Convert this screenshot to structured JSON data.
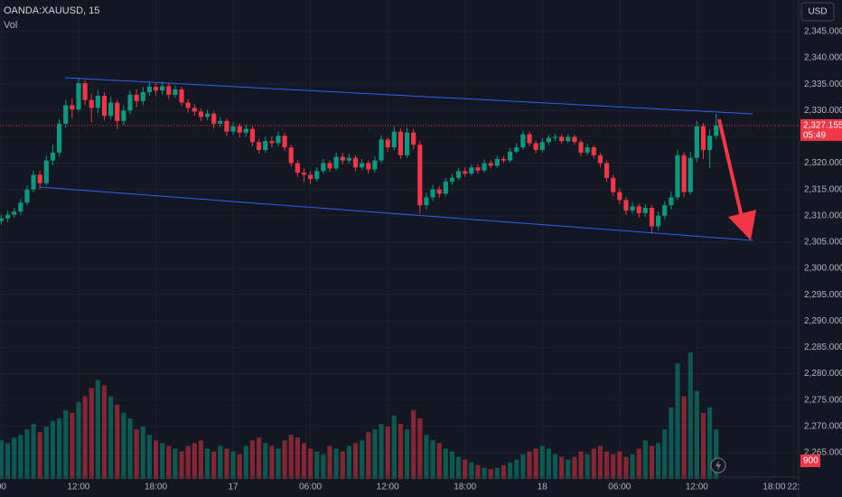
{
  "chart_data": {
    "type": "candlestick",
    "title": "OANDA:XAUUSD, 15",
    "volume_title": "Vol",
    "currency": "USD",
    "last_price_label": "2,327.155",
    "countdown": "05:49",
    "last_volume_label": "900",
    "up_color": "#089981",
    "down_color": "#f23645",
    "grid": true,
    "xlim": [
      5.9,
      67.9
    ],
    "ylim": [
      2260,
      2351
    ],
    "volume_lim": [
      0,
      8700
    ],
    "xticks": [
      {
        "value": 6,
        "label": "00"
      },
      {
        "value": 12,
        "label": "12:00"
      },
      {
        "value": 18,
        "label": "18:00"
      },
      {
        "value": 24,
        "label": "17"
      },
      {
        "value": 30,
        "label": "06:00"
      },
      {
        "value": 36,
        "label": "12:00"
      },
      {
        "value": 42,
        "label": "18:00"
      },
      {
        "value": 48,
        "label": "18"
      },
      {
        "value": 54,
        "label": "06:00"
      },
      {
        "value": 60,
        "label": "12:00"
      },
      {
        "value": 66,
        "label": "18:00"
      },
      {
        "value": 67.5,
        "label": "22:"
      }
    ],
    "yticks": [
      {
        "value": 2265,
        "label": "2,265.000"
      },
      {
        "value": 2270,
        "label": "2,270.000"
      },
      {
        "value": 2275,
        "label": "2,275.000"
      },
      {
        "value": 2280,
        "label": "2,280.000"
      },
      {
        "value": 2285,
        "label": "2,285.000"
      },
      {
        "value": 2290,
        "label": "2,290.000"
      },
      {
        "value": 2295,
        "label": "2,295.000"
      },
      {
        "value": 2300,
        "label": "2,300.000"
      },
      {
        "value": 2305,
        "label": "2,305.000"
      },
      {
        "value": 2310,
        "label": "2,310.000"
      },
      {
        "value": 2315,
        "label": "2,315.000"
      },
      {
        "value": 2320,
        "label": "2,320.000"
      },
      {
        "value": 2325,
        "label": "2,325.000"
      },
      {
        "value": 2330,
        "label": "2,330.000"
      },
      {
        "value": 2335,
        "label": "2,335.000"
      },
      {
        "value": 2340,
        "label": "2,340.000"
      },
      {
        "value": 2345,
        "label": "2,345.000"
      }
    ],
    "x": [
      6,
      6.5,
      7,
      7.5,
      8,
      8.5,
      9,
      9.5,
      10,
      10.5,
      11,
      11.5,
      12,
      12.5,
      13,
      13.5,
      14,
      14.5,
      15,
      15.5,
      16,
      16.5,
      17,
      17.5,
      18,
      18.5,
      19,
      19.5,
      20,
      20.5,
      21,
      21.5,
      22,
      22.5,
      23,
      23.5,
      24,
      24.5,
      25,
      25.5,
      26,
      26.5,
      27,
      27.5,
      28,
      28.5,
      29,
      29.5,
      30,
      30.5,
      31,
      31.5,
      32,
      32.5,
      33,
      33.5,
      34,
      34.5,
      35,
      35.5,
      36,
      36.5,
      37,
      37.5,
      38,
      38.5,
      39,
      39.5,
      40,
      40.5,
      41,
      41.5,
      42,
      42.5,
      43,
      43.5,
      44,
      44.5,
      45,
      45.5,
      46,
      46.5,
      47,
      47.5,
      48,
      48.5,
      49,
      49.5,
      50,
      50.5,
      51,
      51.5,
      52,
      52.5,
      53,
      53.5,
      54,
      54.5,
      55,
      55.5,
      56,
      56.5,
      57,
      57.5,
      58,
      58.5,
      59,
      59.5,
      60,
      60.5,
      61,
      61.5
    ],
    "open": [
      2309.0,
      2309.5,
      2310.2,
      2310.8,
      2312.5,
      2315.0,
      2317.8,
      2316.2,
      2320.5,
      2322.0,
      2327.5,
      2331.0,
      2330.2,
      2335.2,
      2332.0,
      2330.5,
      2332.8,
      2329.0,
      2331.5,
      2328.0,
      2330.0,
      2333.0,
      2331.8,
      2333.5,
      2334.5,
      2333.8,
      2334.6,
      2333.0,
      2334.0,
      2331.5,
      2330.5,
      2329.8,
      2328.8,
      2329.4,
      2327.5,
      2328.0,
      2326.0,
      2327.0,
      2325.8,
      2326.5,
      2324.0,
      2322.5,
      2324.2,
      2323.8,
      2325.2,
      2323.0,
      2320.0,
      2318.2,
      2317.8,
      2317.0,
      2318.5,
      2320.0,
      2319.0,
      2321.2,
      2320.5,
      2321.0,
      2319.2,
      2320.0,
      2318.8,
      2320.5,
      2324.5,
      2323.0,
      2326.0,
      2321.5,
      2325.8,
      2323.5,
      2312.0,
      2313.5,
      2315.0,
      2314.2,
      2316.5,
      2317.2,
      2318.5,
      2318.0,
      2319.2,
      2318.6,
      2320.0,
      2319.5,
      2320.8,
      2320.5,
      2322.2,
      2323.0,
      2325.5,
      2323.8,
      2322.5,
      2324.0,
      2324.8,
      2325.0,
      2324.2,
      2325.0,
      2324.0,
      2322.0,
      2323.0,
      2321.5,
      2320.0,
      2317.2,
      2314.5,
      2313.0,
      2311.0,
      2311.8,
      2310.5,
      2311.5,
      2308.0,
      2310.0,
      2312.0,
      2313.5,
      2321.5,
      2314.5,
      2321.0,
      2327.0,
      2322.5,
      2325.2
    ],
    "high": [
      2310.2,
      2311.0,
      2311.5,
      2313.2,
      2315.8,
      2318.6,
      2318.5,
      2321.4,
      2323.5,
      2328.4,
      2332.0,
      2332.3,
      2336.3,
      2335.8,
      2333.2,
      2333.9,
      2333.5,
      2332.6,
      2332.0,
      2331.0,
      2333.8,
      2334.0,
      2334.5,
      2335.4,
      2335.2,
      2335.5,
      2335.3,
      2334.8,
      2334.5,
      2332.2,
      2331.2,
      2330.4,
      2330.1,
      2329.9,
      2328.8,
      2328.5,
      2327.8,
      2327.6,
      2327.3,
      2327.0,
      2324.6,
      2325.0,
      2325.1,
      2326.0,
      2325.8,
      2323.5,
      2320.6,
      2319.0,
      2318.5,
      2319.2,
      2320.8,
      2320.6,
      2322.0,
      2321.9,
      2321.8,
      2321.5,
      2320.8,
      2320.5,
      2321.3,
      2325.3,
      2325.0,
      2327.0,
      2326.6,
      2326.8,
      2326.5,
      2324.2,
      2314.4,
      2315.9,
      2315.6,
      2317.2,
      2318.0,
      2319.1,
      2319.2,
      2319.8,
      2319.8,
      2320.7,
      2320.6,
      2321.4,
      2321.3,
      2322.9,
      2323.8,
      2326.2,
      2326.0,
      2324.3,
      2324.8,
      2325.4,
      2325.6,
      2325.5,
      2325.5,
      2325.4,
      2324.4,
      2323.7,
      2323.4,
      2322.0,
      2320.5,
      2317.8,
      2315.2,
      2313.6,
      2312.6,
      2312.3,
      2312.2,
      2312.0,
      2310.8,
      2312.8,
      2314.6,
      2322.6,
      2322.0,
      2322.2,
      2328.0,
      2327.6,
      2326.4,
      2329.4
    ],
    "low": [
      2308.3,
      2308.8,
      2309.6,
      2310.2,
      2312.0,
      2314.5,
      2315.0,
      2315.8,
      2319.6,
      2321.2,
      2326.8,
      2328.5,
      2329.8,
      2331.0,
      2327.8,
      2329.5,
      2328.2,
      2328.3,
      2326.5,
      2327.2,
      2329.3,
      2330.6,
      2331.0,
      2332.8,
      2332.9,
      2333.0,
      2332.2,
      2332.4,
      2330.8,
      2329.6,
      2329.0,
      2328.0,
      2328.2,
      2326.6,
      2326.9,
      2325.2,
      2325.4,
      2324.9,
      2325.0,
      2323.2,
      2321.8,
      2322.0,
      2323.0,
      2323.2,
      2322.3,
      2319.3,
      2317.4,
      2316.4,
      2316.0,
      2316.5,
      2318.0,
      2318.3,
      2318.6,
      2319.8,
      2319.9,
      2318.5,
      2318.7,
      2318.0,
      2318.2,
      2320.0,
      2322.2,
      2322.5,
      2320.8,
      2321.0,
      2322.6,
      2310.5,
      2311.2,
      2312.8,
      2313.4,
      2313.8,
      2315.9,
      2316.8,
      2317.4,
      2317.6,
      2318.0,
      2318.2,
      2319.0,
      2319.1,
      2320.0,
      2320.1,
      2321.8,
      2322.6,
      2323.2,
      2321.9,
      2322.0,
      2323.5,
      2324.2,
      2323.7,
      2323.8,
      2323.5,
      2321.4,
      2321.5,
      2320.8,
      2319.2,
      2316.5,
      2313.8,
      2312.2,
      2310.2,
      2310.4,
      2309.6,
      2309.8,
      2306.8,
      2307.2,
      2309.3,
      2311.2,
      2313.0,
      2313.6,
      2314.0,
      2320.2,
      2320.8,
      2319.0,
      2324.6
    ],
    "close": [
      2309.5,
      2310.2,
      2310.8,
      2312.5,
      2315.0,
      2317.8,
      2316.2,
      2320.5,
      2322.0,
      2327.5,
      2331.0,
      2330.2,
      2335.2,
      2332.0,
      2330.5,
      2332.8,
      2329.0,
      2331.5,
      2328.0,
      2330.0,
      2333.0,
      2331.8,
      2333.5,
      2334.5,
      2333.8,
      2334.6,
      2333.0,
      2334.0,
      2331.5,
      2330.5,
      2329.8,
      2328.8,
      2329.4,
      2327.5,
      2328.0,
      2326.0,
      2327.0,
      2325.8,
      2326.5,
      2324.0,
      2322.5,
      2324.2,
      2323.8,
      2325.2,
      2323.0,
      2320.0,
      2318.2,
      2317.8,
      2317.0,
      2318.5,
      2320.0,
      2319.0,
      2321.2,
      2320.5,
      2321.0,
      2319.2,
      2320.0,
      2318.8,
      2320.5,
      2324.5,
      2323.0,
      2326.0,
      2321.5,
      2325.8,
      2323.5,
      2312.0,
      2313.5,
      2315.0,
      2314.2,
      2316.5,
      2317.2,
      2318.5,
      2318.0,
      2319.2,
      2318.6,
      2320.0,
      2319.5,
      2320.8,
      2320.5,
      2322.2,
      2323.0,
      2325.5,
      2323.8,
      2322.5,
      2324.0,
      2324.8,
      2325.0,
      2324.2,
      2325.0,
      2324.0,
      2322.0,
      2323.0,
      2321.5,
      2320.0,
      2317.2,
      2314.5,
      2313.0,
      2311.0,
      2311.8,
      2310.5,
      2311.5,
      2308.0,
      2310.0,
      2312.0,
      2313.5,
      2321.5,
      2314.5,
      2321.0,
      2327.0,
      2322.5,
      2325.2,
      2327.155
    ],
    "volume": [
      700,
      650,
      750,
      800,
      900,
      1000,
      850,
      950,
      1050,
      1100,
      1250,
      1200,
      1400,
      1500,
      1650,
      1800,
      1700,
      1500,
      1350,
      1200,
      1100,
      900,
      950,
      800,
      700,
      650,
      600,
      550,
      500,
      600,
      650,
      700,
      550,
      500,
      600,
      550,
      500,
      450,
      600,
      700,
      750,
      650,
      600,
      550,
      700,
      800,
      750,
      650,
      550,
      500,
      450,
      600,
      550,
      500,
      600,
      650,
      700,
      850,
      900,
      1000,
      950,
      1150,
      1000,
      900,
      1250,
      1100,
      800,
      700,
      650,
      550,
      500,
      400,
      350,
      300,
      250,
      200,
      180,
      200,
      250,
      300,
      350,
      450,
      500,
      550,
      600,
      550,
      450,
      400,
      350,
      400,
      500,
      450,
      550,
      600,
      500,
      450,
      500,
      400,
      450,
      550,
      700,
      600,
      650,
      900,
      1300,
      2100,
      1500,
      2300,
      1600,
      1200,
      1300,
      900
    ]
  }
}
